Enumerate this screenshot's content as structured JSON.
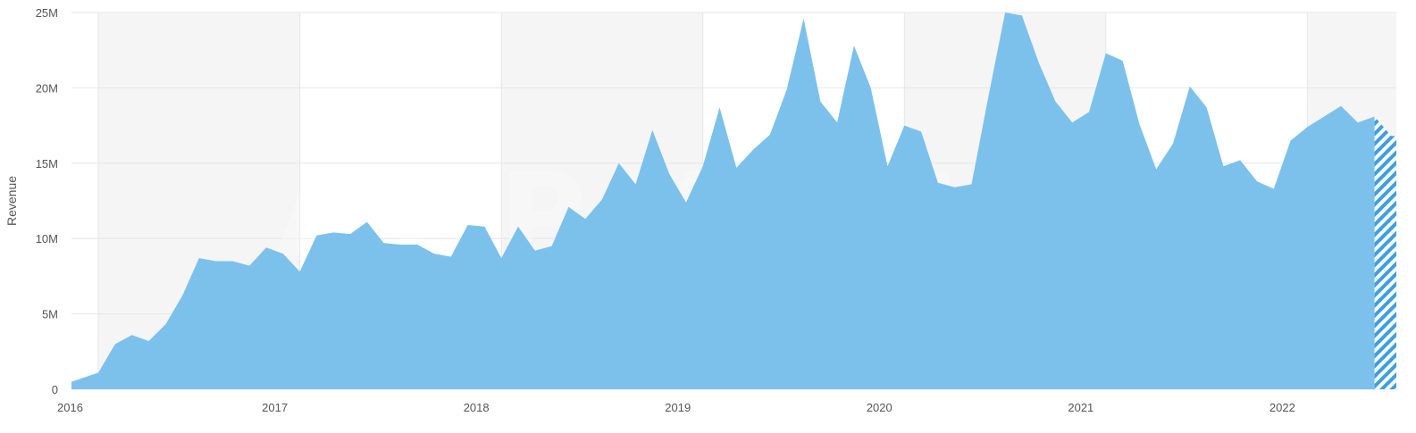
{
  "watermark": "APPMAGIC",
  "chart_data": {
    "type": "area",
    "ylabel": "Revenue",
    "xlabel": "",
    "title": "",
    "ylim": [
      0,
      25000000
    ],
    "yticks": [
      0,
      5000000,
      10000000,
      15000000,
      20000000,
      25000000
    ],
    "ytick_labels": [
      "0",
      "5M",
      "10M",
      "15M",
      "20M",
      "25M"
    ],
    "x_range": [
      "2016-01",
      "2022-06"
    ],
    "xtick_labels": [
      "2016",
      "2017",
      "2018",
      "2019",
      "2020",
      "2021",
      "2022"
    ],
    "colors": {
      "area": "#7cc1ec",
      "background_band": "#f5f5f5",
      "grid": "#e6e6e6",
      "hatch": "#3d9fe0"
    },
    "series": [
      {
        "x": [
          "2016-01",
          "2016-02",
          "2016-03",
          "2016-04",
          "2016-05",
          "2016-06",
          "2016-07",
          "2016-08",
          "2016-09",
          "2016-10",
          "2016-11",
          "2016-12",
          "2017-01",
          "2017-02",
          "2017-03",
          "2017-04",
          "2017-05",
          "2017-06",
          "2017-07",
          "2017-08",
          "2017-09",
          "2017-10",
          "2017-11",
          "2017-12",
          "2018-01",
          "2018-02",
          "2018-03",
          "2018-04",
          "2018-05",
          "2018-06",
          "2018-07",
          "2018-08",
          "2018-09",
          "2018-10",
          "2018-11",
          "2018-12",
          "2019-01",
          "2019-02",
          "2019-03",
          "2019-04",
          "2019-05",
          "2019-06",
          "2019-07",
          "2019-08",
          "2019-09",
          "2019-10",
          "2019-11",
          "2019-12",
          "2020-01",
          "2020-02",
          "2020-03",
          "2020-04",
          "2020-05",
          "2020-06",
          "2020-07",
          "2020-08",
          "2020-09",
          "2020-10",
          "2020-11",
          "2020-12",
          "2021-01",
          "2021-02",
          "2021-03",
          "2021-04",
          "2021-05",
          "2021-06",
          "2021-07",
          "2021-08",
          "2021-09",
          "2021-10",
          "2021-11",
          "2021-12",
          "2022-01",
          "2022-02",
          "2022-03",
          "2022-04",
          "2022-05",
          "2022-06"
        ],
        "values": [
          1100000,
          3000000,
          3600000,
          3200000,
          4300000,
          6200000,
          8700000,
          8500000,
          8500000,
          8200000,
          9400000,
          9000000,
          7800000,
          10200000,
          10400000,
          10300000,
          11100000,
          9700000,
          9600000,
          9600000,
          9000000,
          8800000,
          10900000,
          10800000,
          8700000,
          10800000,
          9200000,
          9500000,
          12100000,
          11300000,
          12600000,
          15000000,
          13600000,
          17200000,
          14300000,
          12400000,
          14800000,
          18700000,
          14700000,
          15900000,
          16900000,
          19900000,
          24600000,
          19100000,
          17700000,
          22800000,
          20000000,
          14800000,
          17500000,
          17100000,
          13700000,
          13400000,
          13600000,
          19400000,
          25000000,
          24800000,
          21700000,
          19100000,
          17700000,
          18400000,
          22300000,
          21800000,
          17600000,
          14600000,
          16300000,
          20100000,
          18700000,
          14800000,
          15200000,
          13800000,
          13300000,
          16500000,
          17400000,
          18100000,
          18800000,
          17700000,
          18100000,
          16800000
        ],
        "incomplete_from": "2022-06"
      }
    ]
  }
}
